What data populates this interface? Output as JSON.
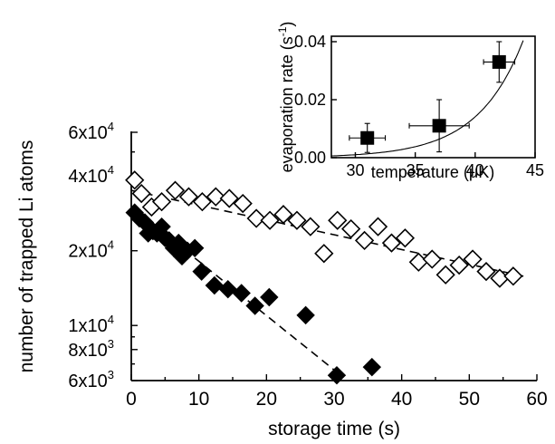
{
  "chart_data": [
    {
      "type": "scatter",
      "title": "",
      "xlabel": "storage time (s)",
      "ylabel": "number of trapped Li atoms",
      "xlim": [
        0,
        60
      ],
      "ylim": [
        6000,
        60000
      ],
      "yscale": "log",
      "x_ticks": [
        "0",
        "10",
        "20",
        "30",
        "40",
        "50",
        "60"
      ],
      "y_ticks": [
        {
          "value": 60000,
          "mantissa": "6x10",
          "exp": "4"
        },
        {
          "value": 40000,
          "mantissa": "4x10",
          "exp": "4"
        },
        {
          "value": 20000,
          "mantissa": "2x10",
          "exp": "4"
        },
        {
          "value": 10000,
          "mantissa": "1x10",
          "exp": "4"
        },
        {
          "value": 8000,
          "mantissa": "8x10",
          "exp": "3"
        },
        {
          "value": 6000,
          "mantissa": "6x10",
          "exp": "3"
        }
      ],
      "series": [
        {
          "marker": "open-diamond",
          "color": "#000000",
          "x": [
            0.5,
            1.5,
            3.0,
            4.5,
            6.5,
            8.5,
            10.5,
            12.5,
            14.5,
            16.5,
            18.5,
            20.5,
            22.5,
            24.5,
            26.5,
            28.5,
            30.5,
            32.5,
            34.5,
            36.5,
            38.5,
            40.5,
            42.5,
            44.5,
            46.5,
            48.5,
            50.5,
            52.5,
            54.5,
            56.5
          ],
          "y": [
            38500,
            34000,
            30000,
            31500,
            35000,
            33000,
            31500,
            33000,
            32500,
            31000,
            27000,
            26500,
            28000,
            26500,
            25000,
            19500,
            26500,
            24500,
            22000,
            25000,
            21500,
            22500,
            18000,
            18500,
            16000,
            17500,
            18500,
            16500,
            15500,
            15800
          ],
          "fit": {
            "type": "exponential",
            "x": [
              0,
              58
            ],
            "y": [
              35000,
              15800
            ]
          }
        },
        {
          "marker": "filled-diamond",
          "color": "#000000",
          "x": [
            0.5,
            1.2,
            2.0,
            2.5,
            3.2,
            3.8,
            4.5,
            5.0,
            5.6,
            6.3,
            7.0,
            7.5,
            8.3,
            9.4,
            10.4,
            12.3,
            14.3,
            16.3,
            18.3,
            20.4,
            25.8,
            30.4,
            35.6
          ],
          "y": [
            28500,
            27000,
            26000,
            23500,
            24000,
            23500,
            25000,
            22500,
            22000,
            20500,
            21500,
            19000,
            20000,
            20500,
            16500,
            14500,
            14000,
            13500,
            12000,
            13000,
            11000,
            6300,
            6800
          ],
          "fit": {
            "type": "exponential",
            "x": [
              0,
              31
            ],
            "y": [
              30000,
              6300
            ]
          }
        }
      ]
    },
    {
      "type": "scatter",
      "title": "",
      "xlabel": "temperature (μK)",
      "ylabel": "evaporation rate (s",
      "ylabel_exp": "-1",
      "ylabel_suffix": ")",
      "xlim": [
        28,
        45
      ],
      "ylim": [
        0,
        0.04
      ],
      "x_ticks": [
        30,
        35,
        40,
        45
      ],
      "y_ticks": [
        "0.00",
        "0.02",
        "0.04"
      ],
      "series": [
        {
          "marker": "filled-square",
          "color": "#000000",
          "x": [
            31,
            37,
            42
          ],
          "y": [
            0.0068,
            0.011,
            0.033
          ],
          "x_err": [
            1.5,
            2.5,
            1.3
          ],
          "y_err": [
            0.005,
            0.009,
            0.007
          ]
        }
      ],
      "fit": {
        "type": "exponential",
        "a": 0.0006,
        "k": 0.263,
        "x0": 28
      }
    }
  ]
}
